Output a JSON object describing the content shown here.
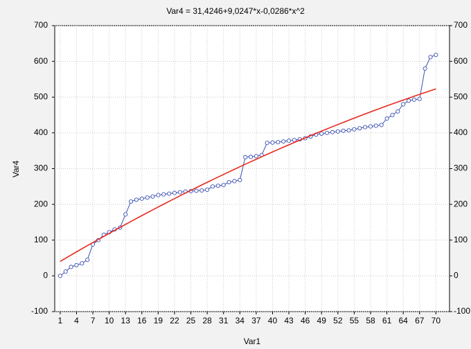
{
  "chart_data": {
    "type": "line",
    "title": "Var4 = 31,4246+9,0247*x-0,0286*x^2",
    "x_label": "Var1",
    "y_label": "Var4",
    "x": [
      1,
      2,
      3,
      4,
      5,
      6,
      7,
      8,
      9,
      10,
      11,
      12,
      13,
      14,
      15,
      16,
      17,
      18,
      19,
      20,
      21,
      22,
      23,
      24,
      25,
      26,
      27,
      28,
      29,
      30,
      31,
      32,
      33,
      34,
      35,
      36,
      37,
      38,
      39,
      40,
      41,
      42,
      43,
      44,
      45,
      46,
      47,
      48,
      49,
      50,
      51,
      52,
      53,
      54,
      55,
      56,
      57,
      58,
      59,
      60,
      61,
      62,
      63,
      64,
      65,
      66,
      67,
      68,
      69,
      70
    ],
    "series": [
      {
        "color": "#3a4fb0",
        "markers": true,
        "values": [
          0,
          12,
          25,
          30,
          35,
          45,
          88,
          100,
          115,
          122,
          130,
          135,
          172,
          208,
          213,
          216,
          219,
          222,
          226,
          228,
          230,
          232,
          234,
          236,
          237,
          238,
          239,
          241,
          250,
          252,
          254,
          262,
          265,
          268,
          332,
          333,
          335,
          338,
          372,
          373,
          374,
          376,
          378,
          380,
          382,
          385,
          390,
          395,
          398,
          400,
          402,
          404,
          406,
          407,
          410,
          413,
          416,
          418,
          420,
          422,
          440,
          450,
          460,
          480,
          490,
          493,
          495,
          580,
          612,
          618
        ]
      },
      {
        "color": "#e8281e",
        "markers": false,
        "values": [
          40.42,
          49.36,
          58.24,
          67.07,
          75.83,
          84.54,
          93.2,
          101.79,
          110.33,
          118.81,
          127.24,
          135.6,
          143.91,
          152.17,
          160.36,
          168.5,
          176.58,
          184.6,
          192.57,
          200.48,
          208.33,
          216.13,
          223.86,
          231.54,
          239.17,
          246.73,
          254.24,
          261.69,
          269.09,
          276.43,
          283.71,
          290.93,
          298.09,
          305.2,
          312.25,
          319.25,
          326.19,
          333.06,
          339.89,
          346.65,
          353.36,
          360.01,
          366.61,
          373.14,
          379.62,
          386.04,
          392.41,
          398.72,
          404.97,
          411.16,
          417.3,
          423.37,
          429.4,
          435.36,
          441.27,
          447.12,
          452.91,
          458.65,
          464.33,
          469.95,
          475.51,
          481.02,
          486.47,
          491.86,
          497.2,
          502.47,
          507.69,
          512.86,
          517.96,
          523.01
        ]
      }
    ],
    "xlim": [
      0,
      72.5
    ],
    "xticks": [
      1,
      4,
      7,
      10,
      13,
      16,
      19,
      22,
      25,
      28,
      31,
      34,
      37,
      40,
      43,
      46,
      49,
      52,
      55,
      58,
      61,
      64,
      67,
      70
    ],
    "ylim": [
      -100,
      700
    ],
    "yticks": [
      -100,
      0,
      100,
      200,
      300,
      400,
      500,
      600,
      700
    ],
    "grid": true
  }
}
